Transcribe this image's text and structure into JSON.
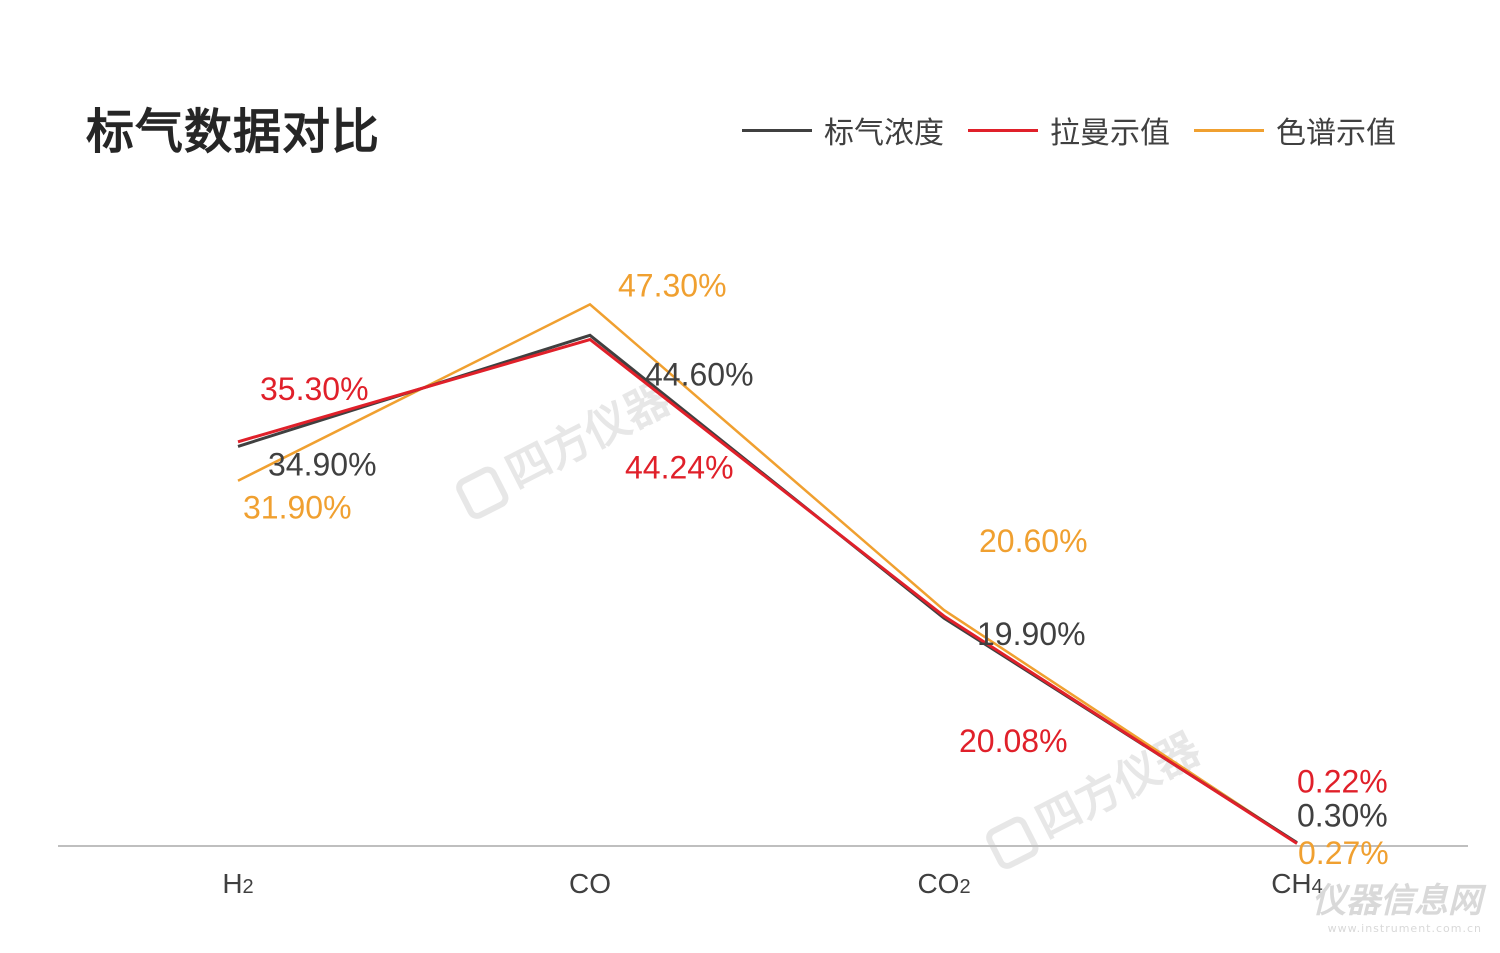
{
  "chart_data": {
    "type": "line",
    "title": "标气数据对比",
    "categories": [
      "H2",
      "CO",
      "CO2",
      "CH4"
    ],
    "ylim": [
      0,
      50
    ],
    "grid": false,
    "legend_position": "top-right",
    "series": [
      {
        "name": "标气浓度",
        "color": "#404040",
        "values": [
          34.9,
          44.6,
          19.9,
          0.3
        ],
        "labels": [
          "34.90%",
          "44.60%",
          "19.90%",
          "0.30%"
        ]
      },
      {
        "name": "拉曼示值",
        "color": "#e0202a",
        "values": [
          35.3,
          44.24,
          20.08,
          0.22
        ],
        "labels": [
          "35.30%",
          "44.24%",
          "20.08%",
          "0.22%"
        ]
      },
      {
        "name": "色谱示值",
        "color": "#f0a030",
        "values": [
          31.9,
          47.3,
          20.6,
          0.27
        ],
        "labels": [
          "31.90%",
          "47.30%",
          "20.60%",
          "0.27%"
        ]
      }
    ]
  },
  "watermark": {
    "text": "四方仪器"
  },
  "corner_logo": {
    "main": "仪器信息网",
    "sub": "www.instrument.com.cn"
  }
}
